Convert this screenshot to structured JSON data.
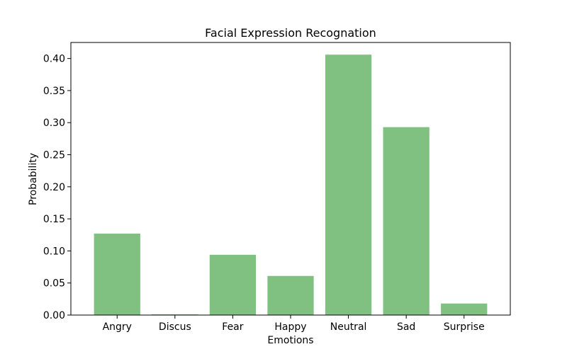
{
  "chart_data": {
    "type": "bar",
    "title": "Facial Expression Recognation",
    "xlabel": "Emotions",
    "ylabel": "Probability",
    "categories": [
      "Angry",
      "Discus",
      "Fear",
      "Happy",
      "Neutral",
      "Sad",
      "Surprise"
    ],
    "values": [
      0.127,
      0.001,
      0.094,
      0.061,
      0.406,
      0.293,
      0.018
    ],
    "ylim": [
      0,
      0.425
    ],
    "yticks": [
      0.0,
      0.05,
      0.1,
      0.15,
      0.2,
      0.25,
      0.3,
      0.35,
      0.4
    ],
    "ytick_labels": [
      "0.00",
      "0.05",
      "0.10",
      "0.15",
      "0.20",
      "0.25",
      "0.30",
      "0.35",
      "0.40"
    ],
    "bar_color": "#80c080",
    "grid": false,
    "legend": null
  }
}
